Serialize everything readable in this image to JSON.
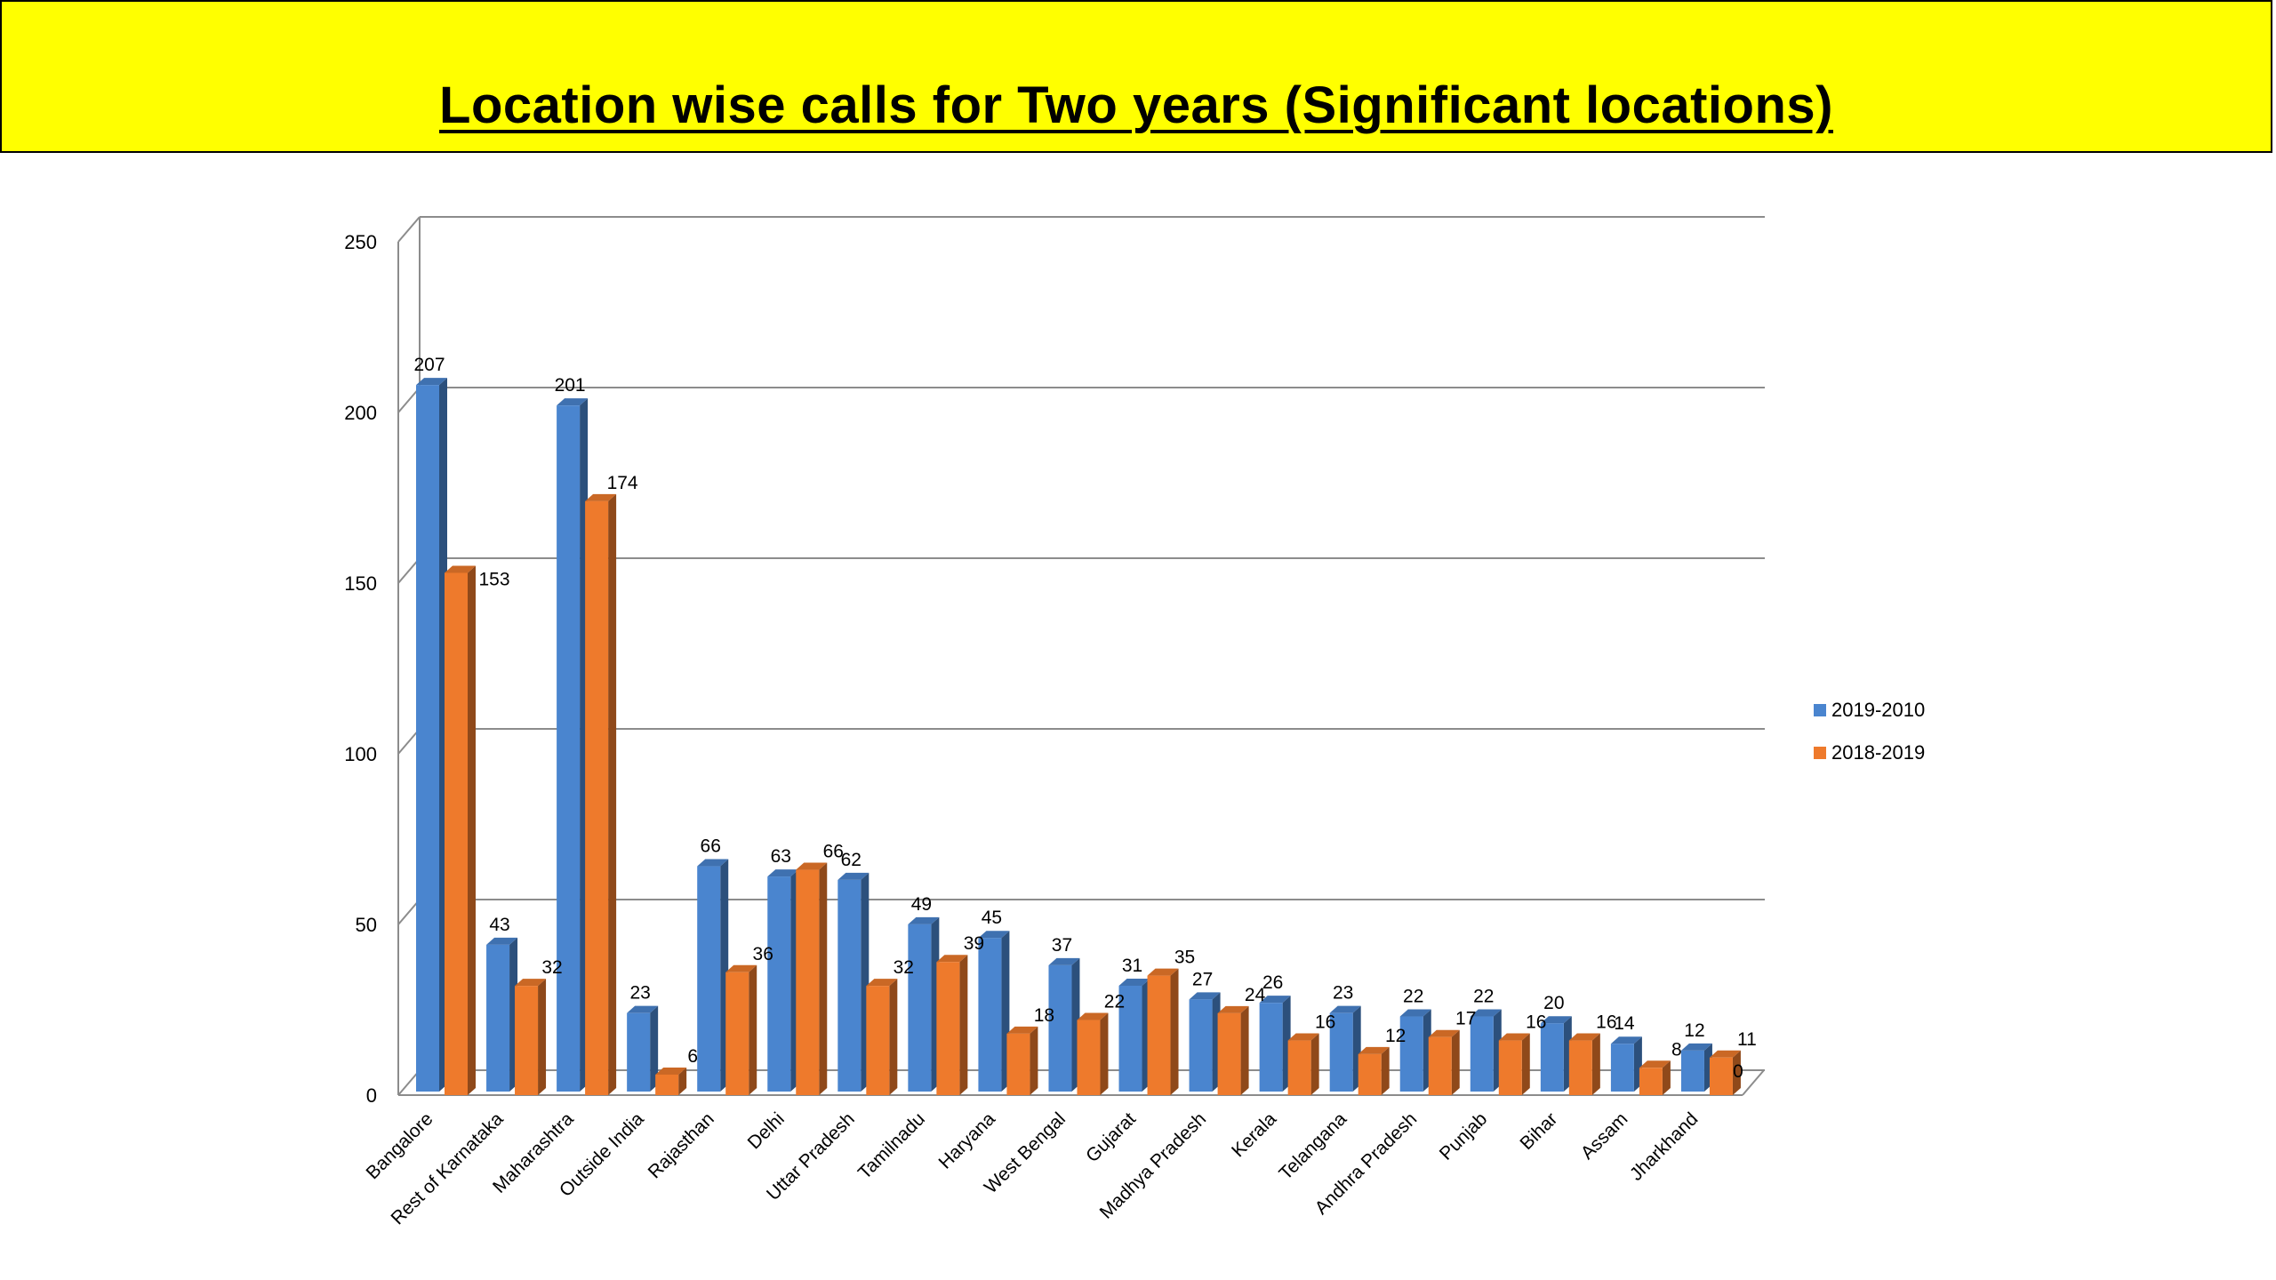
{
  "header": {
    "title": "Location wise calls for Two years (Significant locations)"
  },
  "colors": {
    "banner": "#ffff00",
    "series_2019_2010": "#4a85cf",
    "series_2018_2019": "#ee7a2c",
    "grid": "#8c8c8c"
  },
  "chart_data": {
    "type": "bar",
    "title": "",
    "xlabel": "",
    "ylabel": "",
    "ylim": [
      0,
      250
    ],
    "yticks": [
      0,
      50,
      100,
      150,
      200,
      250
    ],
    "grid": true,
    "legend_position": "right",
    "categories": [
      "Bangalore",
      "Rest of Karnataka",
      "Maharashtra",
      "Outside India",
      "Rajasthan",
      "Delhi",
      "Uttar Pradesh",
      "Tamilnadu",
      "Haryana",
      "West Bengal",
      "Gujarat",
      "Madhya Pradesh",
      "Kerala",
      "Telangana",
      "Andhra Pradesh",
      "Punjab",
      "Bihar",
      "Assam",
      "Jharkhand"
    ],
    "series": [
      {
        "name": "2019-2010",
        "values": [
          207,
          43,
          201,
          23,
          66,
          63,
          62,
          49,
          45,
          37,
          31,
          27,
          26,
          23,
          22,
          22,
          20,
          14,
          12
        ]
      },
      {
        "name": "2018-2019",
        "values": [
          153,
          32,
          174,
          6,
          36,
          66,
          32,
          39,
          18,
          22,
          35,
          24,
          16,
          12,
          17,
          16,
          16,
          8,
          11
        ]
      }
    ],
    "annotations": [
      "0"
    ]
  }
}
